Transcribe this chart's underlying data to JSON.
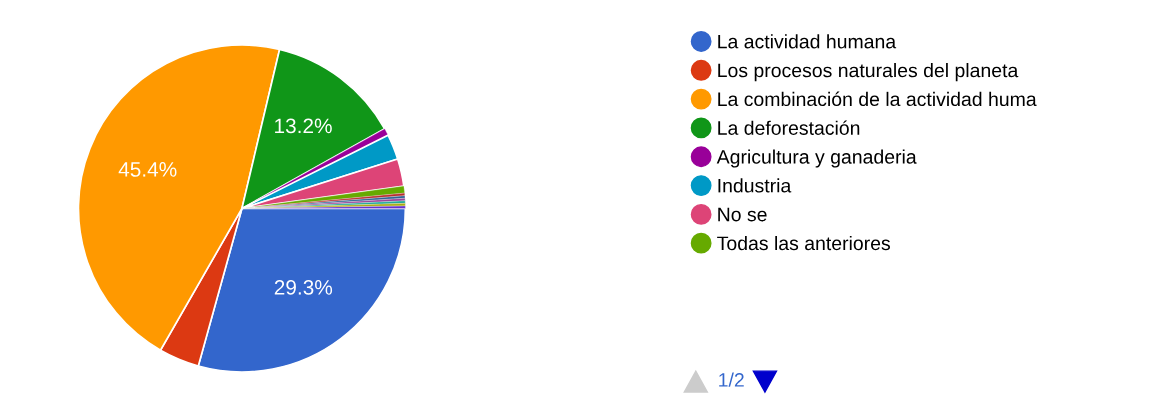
{
  "chart_data": {
    "type": "pie",
    "categories": [
      "La actividad humana",
      "Los procesos naturales del planeta",
      "La combinación de la actividad huma",
      "La deforestación",
      "Agricultura y ganaderia",
      "Industria",
      "No se",
      "Todas las anteriores",
      null,
      null,
      null,
      null,
      null,
      null
    ],
    "values": [
      29.3,
      4.0,
      45.4,
      13.2,
      0.7,
      2.5,
      2.7,
      0.7,
      0.25,
      0.25,
      0.25,
      0.25,
      0.25,
      0.25
    ],
    "colors": [
      "#3366cc",
      "#dc3912",
      "#ff9900",
      "#109618",
      "#990099",
      "#0099c6",
      "#dd4477",
      "#66aa00",
      "#b82e2e",
      "#316395",
      "#994499",
      "#22aa99",
      "#aaaa11",
      "#6633cc"
    ],
    "value_labels": [
      "29.3%",
      null,
      "45.4%",
      "13.2%",
      null,
      null,
      null,
      null,
      null,
      null,
      null,
      null,
      null,
      null
    ],
    "legend": "right",
    "annotations": [
      "1/2"
    ]
  }
}
